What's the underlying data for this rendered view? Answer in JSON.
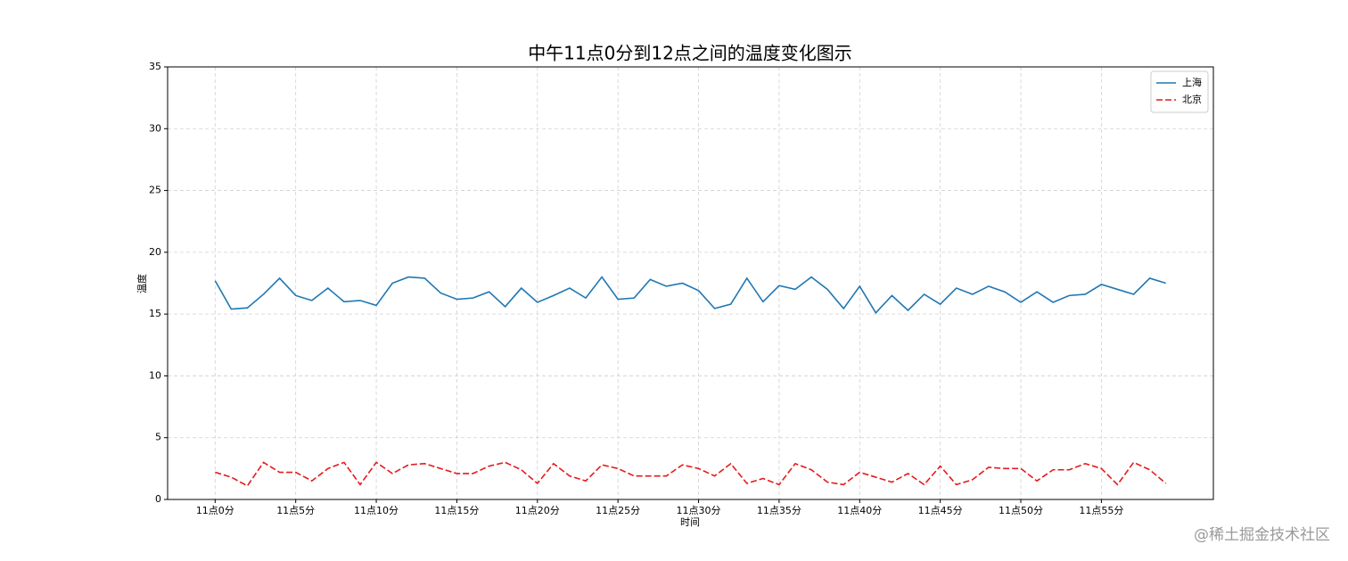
{
  "chart_data": {
    "type": "line",
    "title": "中午11点0分到12点之间的温度变化图示",
    "xlabel": "时间",
    "ylabel": "温度",
    "x": [
      0,
      1,
      2,
      3,
      4,
      5,
      6,
      7,
      8,
      9,
      10,
      11,
      12,
      13,
      14,
      15,
      16,
      17,
      18,
      19,
      20,
      21,
      22,
      23,
      24,
      25,
      26,
      27,
      28,
      29,
      30,
      31,
      32,
      33,
      34,
      35,
      36,
      37,
      38,
      39,
      40,
      41,
      42,
      43,
      44,
      45,
      46,
      47,
      48,
      49,
      50,
      51,
      52,
      53,
      54,
      55,
      56,
      57,
      58,
      59
    ],
    "series": [
      {
        "name": "上海",
        "color": "#1f77b4",
        "linestyle": "solid",
        "values": [
          17.7,
          15.4,
          15.5,
          16.6,
          17.9,
          16.5,
          16.1,
          17.1,
          16.0,
          16.1,
          15.7,
          17.5,
          18.0,
          17.9,
          16.7,
          16.2,
          16.3,
          16.8,
          15.6,
          17.1,
          15.95,
          16.5,
          17.1,
          16.3,
          18.0,
          16.2,
          16.3,
          17.8,
          17.25,
          17.5,
          16.9,
          15.45,
          15.8,
          17.9,
          16.0,
          17.3,
          17.0,
          18.0,
          17.0,
          15.45,
          17.25,
          15.1,
          16.5,
          15.3,
          16.6,
          15.8,
          17.1,
          16.6,
          17.25,
          16.8,
          15.95,
          16.8,
          15.95,
          16.5,
          16.6,
          17.4,
          17.0,
          16.6,
          17.9,
          17.5
        ]
      },
      {
        "name": "北京",
        "color": "#e41a1c",
        "linestyle": "dashed",
        "values": [
          2.2,
          1.8,
          1.1,
          3.0,
          2.2,
          2.2,
          1.5,
          2.5,
          3.0,
          1.2,
          3.0,
          2.1,
          2.8,
          2.9,
          2.5,
          2.1,
          2.1,
          2.7,
          3.0,
          2.4,
          1.3,
          2.9,
          1.9,
          1.5,
          2.8,
          2.5,
          1.9,
          1.9,
          1.9,
          2.8,
          2.5,
          1.9,
          2.9,
          1.3,
          1.7,
          1.2,
          2.9,
          2.4,
          1.4,
          1.2,
          2.2,
          1.8,
          1.4,
          2.1,
          1.2,
          2.7,
          1.2,
          1.6,
          2.6,
          2.5,
          2.5,
          1.5,
          2.4,
          2.4,
          2.9,
          2.5,
          1.2,
          3.0,
          2.4,
          1.3
        ]
      }
    ],
    "xlim": [
      -2.95,
      61.95
    ],
    "ylim": [
      0,
      35
    ],
    "xticks": [
      {
        "value": 0,
        "label": "11点0分"
      },
      {
        "value": 5,
        "label": "11点5分"
      },
      {
        "value": 10,
        "label": "11点10分"
      },
      {
        "value": 15,
        "label": "11点15分"
      },
      {
        "value": 20,
        "label": "11点20分"
      },
      {
        "value": 25,
        "label": "11点25分"
      },
      {
        "value": 30,
        "label": "11点30分"
      },
      {
        "value": 35,
        "label": "11点35分"
      },
      {
        "value": 40,
        "label": "11点40分"
      },
      {
        "value": 45,
        "label": "11点45分"
      },
      {
        "value": 50,
        "label": "11点50分"
      },
      {
        "value": 55,
        "label": "11点55分"
      }
    ],
    "yticks": [
      0,
      5,
      10,
      15,
      20,
      25,
      30,
      35
    ],
    "grid": true,
    "legend": "upper right"
  },
  "watermark": "@稀土掘金技术社区"
}
